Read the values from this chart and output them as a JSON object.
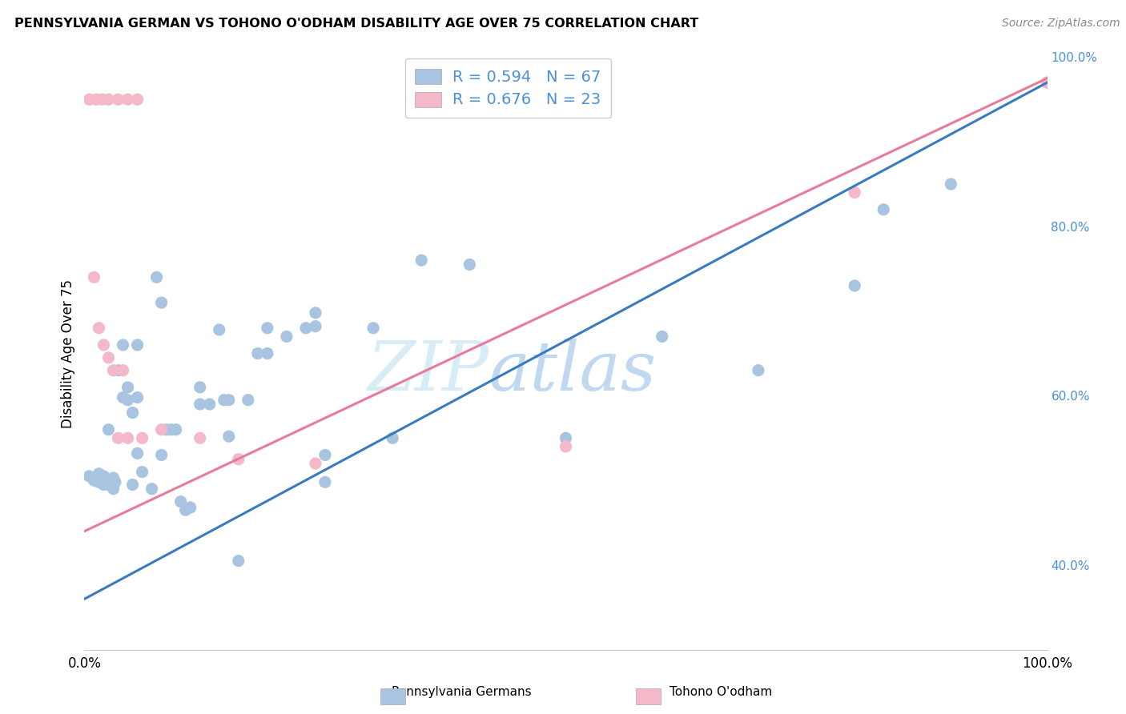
{
  "title": "PENNSYLVANIA GERMAN VS TOHONO O'ODHAM DISABILITY AGE OVER 75 CORRELATION CHART",
  "source": "Source: ZipAtlas.com",
  "ylabel": "Disability Age Over 75",
  "legend_blue_label": "Pennsylvania Germans",
  "legend_pink_label": "Tohono O'odham",
  "R_blue": 0.594,
  "N_blue": 67,
  "R_pink": 0.676,
  "N_pink": 23,
  "blue_color": "#a8c4e0",
  "pink_color": "#f4b8c8",
  "blue_line_color": "#3a7abf",
  "pink_line_color": "#e87a9a",
  "right_axis_color": "#4a90d9",
  "watermark_color": "#c8dff0",
  "blue_scatter": [
    [
      0.5,
      50.5
    ],
    [
      1.0,
      50.0
    ],
    [
      1.2,
      50.3
    ],
    [
      1.5,
      50.5
    ],
    [
      1.5,
      49.8
    ],
    [
      1.5,
      50.8
    ],
    [
      2.0,
      50.2
    ],
    [
      2.0,
      49.5
    ],
    [
      2.0,
      50.5
    ],
    [
      2.2,
      50.0
    ],
    [
      2.2,
      49.8
    ],
    [
      2.5,
      49.5
    ],
    [
      2.5,
      56.0
    ],
    [
      3.0,
      49.5
    ],
    [
      3.0,
      50.3
    ],
    [
      3.0,
      49.0
    ],
    [
      3.2,
      49.8
    ],
    [
      3.5,
      63.0
    ],
    [
      4.0,
      59.8
    ],
    [
      4.0,
      66.0
    ],
    [
      4.5,
      61.0
    ],
    [
      4.5,
      59.5
    ],
    [
      5.0,
      58.0
    ],
    [
      5.0,
      49.5
    ],
    [
      5.5,
      66.0
    ],
    [
      5.5,
      59.8
    ],
    [
      5.5,
      53.2
    ],
    [
      6.0,
      51.0
    ],
    [
      7.0,
      49.0
    ],
    [
      7.5,
      74.0
    ],
    [
      8.0,
      71.0
    ],
    [
      8.0,
      53.0
    ],
    [
      8.5,
      56.0
    ],
    [
      9.0,
      56.0
    ],
    [
      9.5,
      56.0
    ],
    [
      10.0,
      47.5
    ],
    [
      10.5,
      46.5
    ],
    [
      11.0,
      46.8
    ],
    [
      12.0,
      59.0
    ],
    [
      12.0,
      61.0
    ],
    [
      13.0,
      59.0
    ],
    [
      14.0,
      67.8
    ],
    [
      14.5,
      59.5
    ],
    [
      15.0,
      55.2
    ],
    [
      15.0,
      59.5
    ],
    [
      16.0,
      40.5
    ],
    [
      17.0,
      59.5
    ],
    [
      18.0,
      65.0
    ],
    [
      19.0,
      68.0
    ],
    [
      19.0,
      65.0
    ],
    [
      21.0,
      67.0
    ],
    [
      23.0,
      68.0
    ],
    [
      24.0,
      69.8
    ],
    [
      24.0,
      68.2
    ],
    [
      25.0,
      53.0
    ],
    [
      25.0,
      49.8
    ],
    [
      30.0,
      68.0
    ],
    [
      32.0,
      55.0
    ],
    [
      35.0,
      76.0
    ],
    [
      40.0,
      75.5
    ],
    [
      50.0,
      55.0
    ],
    [
      60.0,
      67.0
    ],
    [
      70.0,
      63.0
    ],
    [
      80.0,
      73.0
    ],
    [
      83.0,
      82.0
    ],
    [
      90.0,
      85.0
    ],
    [
      100.0,
      97.0
    ]
  ],
  "pink_scatter": [
    [
      0.5,
      95.0
    ],
    [
      1.2,
      95.0
    ],
    [
      1.8,
      95.0
    ],
    [
      2.5,
      95.0
    ],
    [
      3.5,
      95.0
    ],
    [
      4.5,
      95.0
    ],
    [
      5.5,
      95.0
    ],
    [
      1.0,
      74.0
    ],
    [
      1.5,
      68.0
    ],
    [
      2.0,
      66.0
    ],
    [
      2.5,
      64.5
    ],
    [
      3.0,
      63.0
    ],
    [
      3.5,
      55.0
    ],
    [
      4.0,
      63.0
    ],
    [
      4.5,
      55.0
    ],
    [
      6.0,
      55.0
    ],
    [
      8.0,
      56.0
    ],
    [
      12.0,
      55.0
    ],
    [
      16.0,
      52.5
    ],
    [
      24.0,
      52.0
    ],
    [
      50.0,
      54.0
    ],
    [
      80.0,
      84.0
    ],
    [
      100.0,
      97.0
    ]
  ],
  "blue_line_x": [
    0,
    100
  ],
  "blue_line_y": [
    36.0,
    97.0
  ],
  "pink_line_x": [
    0,
    100
  ],
  "pink_line_y": [
    44.0,
    97.5
  ],
  "xlim": [
    0,
    100
  ],
  "ylim": [
    30,
    100
  ],
  "right_yticks": [
    40,
    60,
    80,
    100
  ],
  "right_yticklabels": [
    "40.0%",
    "60.0%",
    "80.0%",
    "100.0%"
  ],
  "grid_color": "#e0e0e0",
  "background_color": "#ffffff"
}
